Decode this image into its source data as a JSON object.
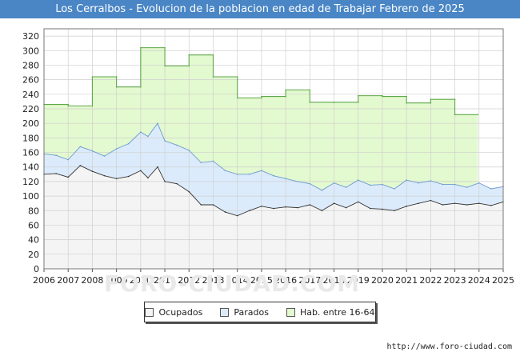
{
  "title": "Los Cerralbos - Evolucion de la poblacion en edad de Trabajar Febrero de 2025",
  "watermark": "FORO-CIUDAD.COM",
  "source": "http://www.foro-ciudad.com",
  "colors": {
    "title_bg": "#4a86c5",
    "ocupados_fill": "#f4f4f4",
    "parados_fill": "#dcebfb",
    "hab_fill": "#e3f9cf",
    "hab_line": "#5ea84a",
    "parados_line": "#6b9bd0",
    "ocupados_line": "#333333"
  },
  "legend": {
    "ocupados": "Ocupados",
    "parados": "Parados",
    "hab": "Hab. entre 16-64"
  },
  "chart_data": {
    "type": "area",
    "title": "Los Cerralbos - Evolucion de la poblacion en edad de Trabajar Febrero de 2025",
    "xlabel": "",
    "ylabel": "",
    "ylim": [
      0,
      330
    ],
    "xlim": [
      2006,
      2025
    ],
    "y_ticks": [
      0,
      20,
      40,
      60,
      80,
      100,
      120,
      140,
      160,
      180,
      200,
      220,
      240,
      260,
      280,
      300,
      320
    ],
    "x_ticks": [
      "2006",
      "2007",
      "2008",
      "2009",
      "2010",
      "2011",
      "2012",
      "2013",
      "2014",
      "2015",
      "2016",
      "2017",
      "2018",
      "2019",
      "2020",
      "2021",
      "2022",
      "2023",
      "2024",
      "2025"
    ],
    "grid": true,
    "legend_position": "bottom",
    "series": [
      {
        "name": "Hab. entre 16-64",
        "x": [
          2006,
          2007,
          2007,
          2008,
          2008,
          2009,
          2009,
          2010,
          2010,
          2011,
          2011,
          2012,
          2012,
          2013,
          2013,
          2014,
          2014,
          2015,
          2015,
          2016,
          2016,
          2017,
          2017,
          2018,
          2018,
          2019,
          2019,
          2020,
          2020,
          2021,
          2021,
          2022,
          2022,
          2023,
          2023,
          2023.95
        ],
        "values": [
          226,
          226,
          224,
          224,
          264,
          264,
          250,
          250,
          304,
          304,
          279,
          279,
          294,
          294,
          264,
          264,
          235,
          235,
          237,
          237,
          246,
          246,
          229,
          229,
          229,
          229,
          238,
          238,
          237,
          237,
          228,
          228,
          233,
          233,
          212,
          212
        ]
      },
      {
        "name": "Parados",
        "x": [
          2006,
          2006.5,
          2007,
          2007.5,
          2008,
          2008.5,
          2009,
          2009.5,
          2010,
          2010.3,
          2010.7,
          2011,
          2011.5,
          2012,
          2012.5,
          2013,
          2013.5,
          2014,
          2014.5,
          2015,
          2015.5,
          2016,
          2016.5,
          2017,
          2017.5,
          2018,
          2018.5,
          2019,
          2019.5,
          2020,
          2020.5,
          2021,
          2021.5,
          2022,
          2022.5,
          2023,
          2023.5,
          2024,
          2024.5,
          2025
        ],
        "values": [
          158,
          156,
          150,
          168,
          162,
          155,
          165,
          172,
          188,
          182,
          200,
          176,
          170,
          163,
          146,
          148,
          135,
          130,
          130,
          135,
          128,
          124,
          120,
          117,
          108,
          118,
          112,
          122,
          115,
          116,
          110,
          122,
          118,
          121,
          116,
          116,
          112,
          118,
          110,
          113
        ]
      },
      {
        "name": "Ocupados",
        "x": [
          2006,
          2006.5,
          2007,
          2007.5,
          2008,
          2008.5,
          2009,
          2009.5,
          2010,
          2010.3,
          2010.7,
          2011,
          2011.5,
          2012,
          2012.5,
          2013,
          2013.5,
          2014,
          2014.5,
          2015,
          2015.5,
          2016,
          2016.5,
          2017,
          2017.5,
          2018,
          2018.5,
          2019,
          2019.5,
          2020,
          2020.5,
          2021,
          2021.5,
          2022,
          2022.5,
          2023,
          2023.5,
          2024,
          2024.5,
          2025
        ],
        "values": [
          130,
          131,
          126,
          142,
          134,
          128,
          124,
          127,
          135,
          125,
          140,
          120,
          117,
          106,
          88,
          88,
          78,
          73,
          80,
          86,
          83,
          85,
          84,
          88,
          80,
          90,
          84,
          92,
          83,
          82,
          80,
          86,
          90,
          94,
          88,
          90,
          88,
          90,
          87,
          92
        ]
      }
    ]
  }
}
